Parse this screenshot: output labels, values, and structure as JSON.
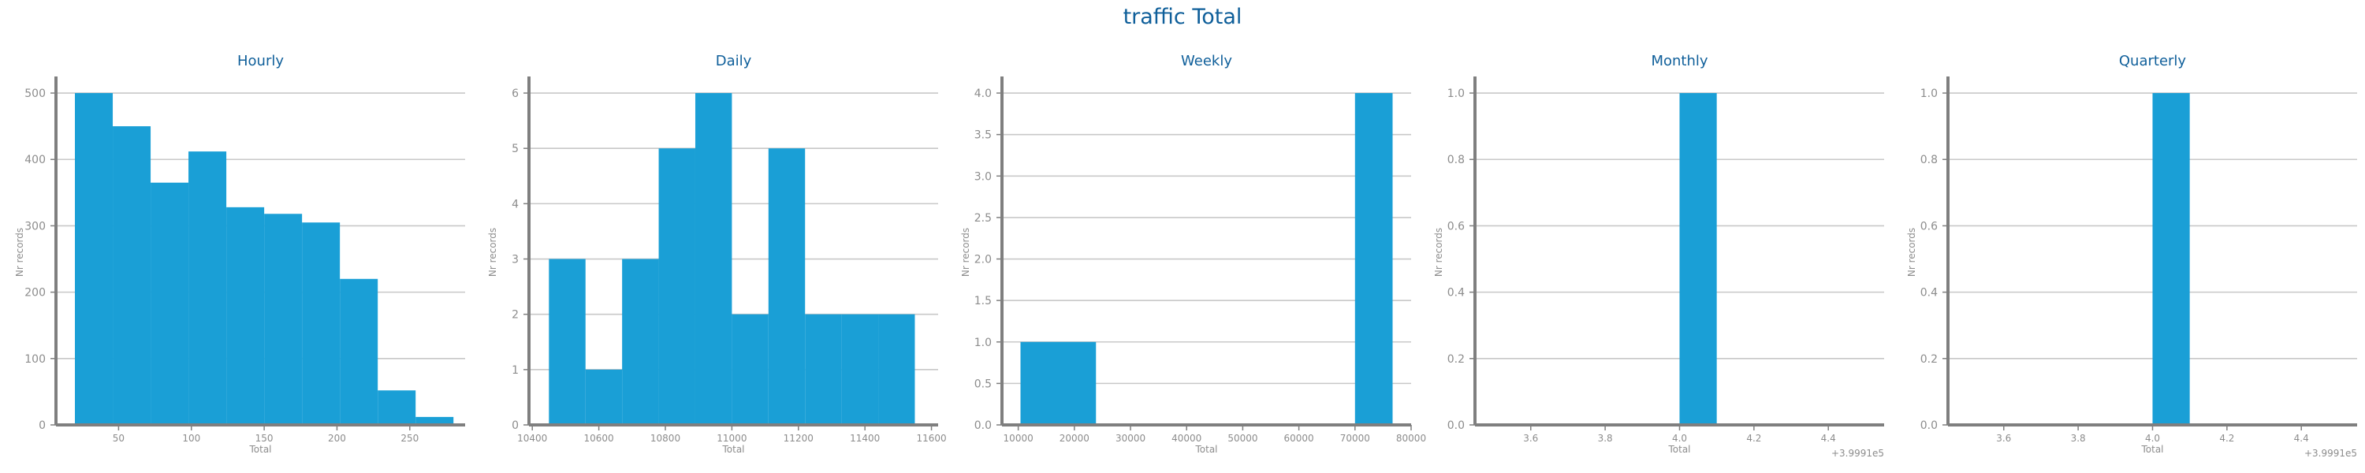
{
  "figure": {
    "title": "traffic Total"
  },
  "colors": {
    "bar": "#1a9fd6",
    "title": "#0f5f9a",
    "axis": "#7f7f7f",
    "tick_text": "#8c8c8c",
    "grid": "#c8c8c8"
  },
  "chart_data": [
    {
      "type": "bar",
      "title": "Hourly",
      "xlabel": "Total",
      "ylabel": "Nr records",
      "xlim": [
        7,
        288
      ],
      "ylim": [
        0,
        525
      ],
      "xticks": [
        50,
        100,
        150,
        200,
        250
      ],
      "yticks": [
        0,
        100,
        200,
        300,
        400,
        500
      ],
      "bins": [
        {
          "x0": 20,
          "x1": 46,
          "value": 500
        },
        {
          "x0": 46,
          "x1": 72,
          "value": 450
        },
        {
          "x0": 72,
          "x1": 98,
          "value": 365
        },
        {
          "x0": 98,
          "x1": 124,
          "value": 412
        },
        {
          "x0": 124,
          "x1": 150,
          "value": 328
        },
        {
          "x0": 150,
          "x1": 176,
          "value": 318
        },
        {
          "x0": 176,
          "x1": 202,
          "value": 305
        },
        {
          "x0": 202,
          "x1": 228,
          "value": 220
        },
        {
          "x0": 228,
          "x1": 254,
          "value": 52
        },
        {
          "x0": 254,
          "x1": 280,
          "value": 12
        }
      ],
      "grid": "y"
    },
    {
      "type": "bar",
      "title": "Daily",
      "xlabel": "Total",
      "ylabel": "Nr records",
      "xlim": [
        10390,
        11620
      ],
      "ylim": [
        0,
        6.3
      ],
      "xticks": [
        10400,
        10600,
        10800,
        11000,
        11200,
        11400,
        11600
      ],
      "yticks": [
        0,
        1,
        2,
        3,
        4,
        5,
        6
      ],
      "bins": [
        {
          "x0": 10450,
          "x1": 10560,
          "value": 3
        },
        {
          "x0": 10560,
          "x1": 10670,
          "value": 1
        },
        {
          "x0": 10670,
          "x1": 10780,
          "value": 3
        },
        {
          "x0": 10780,
          "x1": 10890,
          "value": 5
        },
        {
          "x0": 10890,
          "x1": 11000,
          "value": 6
        },
        {
          "x0": 11000,
          "x1": 11110,
          "value": 2
        },
        {
          "x0": 11110,
          "x1": 11220,
          "value": 5
        },
        {
          "x0": 11220,
          "x1": 11330,
          "value": 2
        },
        {
          "x0": 11330,
          "x1": 11440,
          "value": 2
        },
        {
          "x0": 11440,
          "x1": 11550,
          "value": 2
        }
      ],
      "grid": "y"
    },
    {
      "type": "bar",
      "title": "Weekly",
      "xlabel": "Total",
      "ylabel": "Nr records",
      "xlim": [
        7100,
        80000
      ],
      "ylim": [
        0,
        4.2
      ],
      "xticks": [
        10000,
        20000,
        30000,
        40000,
        50000,
        60000,
        70000,
        80000
      ],
      "yticks": [
        0,
        0.5,
        1.0,
        1.5,
        2.0,
        2.5,
        3.0,
        3.5,
        4.0
      ],
      "ytick_labels": [
        "0.0",
        "0.5",
        "1.0",
        "1.5",
        "2.0",
        "2.5",
        "3.0",
        "3.5",
        "4.0"
      ],
      "bins": [
        {
          "x0": 10400,
          "x1": 23850,
          "value": 1
        },
        {
          "x0": 23850,
          "x1": 70000,
          "value": 0
        },
        {
          "x0": 70000,
          "x1": 76700,
          "value": 4
        }
      ],
      "grid": "y"
    },
    {
      "type": "bar",
      "title": "Monthly",
      "xlabel": "Total",
      "ylabel": "Nr records",
      "offset_label": "+3.9991e5",
      "xlim": [
        3.45,
        4.55
      ],
      "ylim": [
        0,
        1.05
      ],
      "xticks": [
        3.6,
        3.8,
        4.0,
        4.2,
        4.4
      ],
      "xtick_labels": [
        "3.6",
        "3.8",
        "4.0",
        "4.2",
        "4.4"
      ],
      "yticks": [
        0,
        0.2,
        0.4,
        0.6,
        0.8,
        1.0
      ],
      "ytick_labels": [
        "0.0",
        "0.2",
        "0.4",
        "0.6",
        "0.8",
        "1.0"
      ],
      "bins": [
        {
          "x0": 4.0,
          "x1": 4.1,
          "value": 1
        }
      ],
      "grid": "y"
    },
    {
      "type": "bar",
      "title": "Quarterly",
      "xlabel": "Total",
      "ylabel": "Nr records",
      "offset_label": "+3.9991e5",
      "xlim": [
        3.45,
        4.55
      ],
      "ylim": [
        0,
        1.05
      ],
      "xticks": [
        3.6,
        3.8,
        4.0,
        4.2,
        4.4
      ],
      "xtick_labels": [
        "3.6",
        "3.8",
        "4.0",
        "4.2",
        "4.4"
      ],
      "yticks": [
        0,
        0.2,
        0.4,
        0.6,
        0.8,
        1.0
      ],
      "ytick_labels": [
        "0.0",
        "0.2",
        "0.4",
        "0.6",
        "0.8",
        "1.0"
      ],
      "bins": [
        {
          "x0": 4.0,
          "x1": 4.1,
          "value": 1
        }
      ],
      "grid": "y"
    }
  ]
}
